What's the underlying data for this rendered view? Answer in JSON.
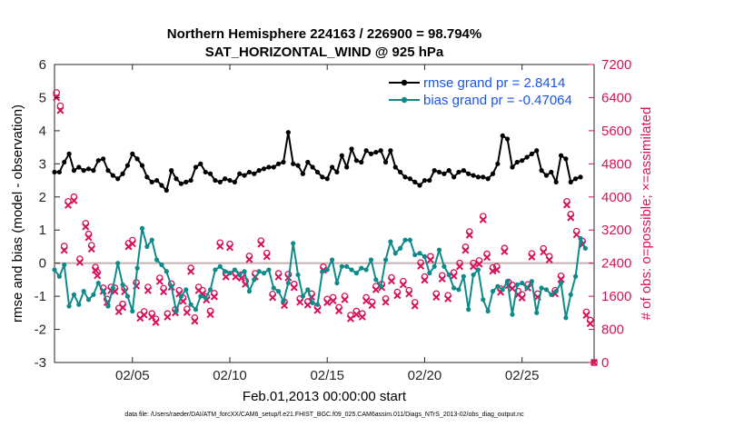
{
  "chart_data": {
    "type": "line",
    "title": "Northern Hemisphere 224163 / 226900 = 98.794%",
    "subtitle": "SAT_HORIZONTAL_WIND @ 925 hPa",
    "xlabel": "Feb.01,2013 00:00:00 start",
    "ylabel_left": "rmse and bias (model - observation)",
    "ylabel_right": "# of obs: o=possible; ×=assimilated",
    "footer": "data file: /Users/raeder/DAI/ATM_forcXX/CAM6_setup/f.e21.FHIST_BGC.f09_025.CAM6assim.011/Diags_NTrS_2013-02/obs_diag_output.nc",
    "x_range_days": [
      1,
      28.7
    ],
    "ylim_left": [
      -3,
      6
    ],
    "ylim_right": [
      0,
      7200
    ],
    "x_ticks": [
      {
        "day": 5,
        "label": "02/05"
      },
      {
        "day": 10,
        "label": "02/10"
      },
      {
        "day": 15,
        "label": "02/15"
      },
      {
        "day": 20,
        "label": "02/20"
      },
      {
        "day": 25,
        "label": "02/25"
      }
    ],
    "y_ticks_left": [
      "-3",
      "-2",
      "-1",
      "0",
      "1",
      "2",
      "3",
      "4",
      "5",
      "6"
    ],
    "y_ticks_right": [
      "0",
      "800",
      "1600",
      "2400",
      "3200",
      "4000",
      "4800",
      "5600",
      "6400",
      "7200"
    ],
    "x_start_day": 1.0,
    "x_step_day": 0.25,
    "colors": {
      "rmse": "#000000",
      "bias": "#0f8a8a",
      "obs": "#d6135a",
      "zero": "#c8b0b0",
      "legend_text": "#1a56e6"
    },
    "series": [
      {
        "name": "rmse grand pr = 2.8414",
        "axis": "left",
        "values": [
          2.75,
          2.75,
          3.05,
          3.3,
          2.8,
          2.9,
          2.8,
          2.85,
          2.8,
          3.1,
          3.15,
          2.8,
          2.65,
          2.55,
          2.7,
          2.95,
          3.3,
          3.15,
          2.95,
          2.6,
          2.45,
          2.5,
          2.35,
          2.2,
          2.8,
          2.55,
          2.4,
          2.45,
          2.5,
          2.9,
          3.0,
          2.75,
          2.7,
          2.5,
          2.45,
          2.55,
          2.5,
          2.45,
          2.7,
          2.65,
          2.75,
          2.7,
          2.8,
          2.85,
          2.9,
          2.9,
          3.0,
          3.05,
          3.95,
          3.0,
          2.95,
          2.7,
          3.05,
          2.9,
          2.75,
          2.6,
          2.55,
          2.9,
          2.75,
          3.25,
          2.9,
          3.45,
          3.1,
          3.05,
          3.4,
          3.3,
          3.35,
          3.4,
          3.05,
          3.4,
          2.9,
          2.75,
          2.6,
          2.55,
          2.45,
          2.35,
          2.5,
          2.5,
          2.8,
          2.75,
          2.7,
          2.8,
          2.6,
          2.75,
          2.8,
          2.7,
          2.65,
          2.6,
          2.6,
          2.55,
          2.7,
          3.0,
          3.85,
          3.75,
          2.9,
          3.05,
          3.1,
          3.2,
          3.3,
          3.4,
          2.8,
          2.65,
          2.75,
          2.45,
          3.25,
          3.15,
          2.45,
          2.55,
          2.6
        ],
        "points": [],
        "marker": "dot"
      },
      {
        "name": "bias grand pr = -0.47064",
        "axis": "left",
        "values": [
          -0.2,
          -0.4,
          -0.05,
          -1.3,
          -0.95,
          -1.25,
          -0.85,
          -1.1,
          -0.95,
          -0.6,
          -0.85,
          -1.3,
          -0.75,
          0.0,
          -0.65,
          -1.0,
          -1.45,
          -0.15,
          1.05,
          0.5,
          0.7,
          0.1,
          -0.05,
          -0.25,
          -0.7,
          -1.45,
          -1.0,
          -0.8,
          -1.25,
          -1.4,
          -1.0,
          -1.05,
          -0.8,
          -0.2,
          -0.1,
          -0.25,
          -0.3,
          -0.2,
          -0.35,
          -0.25,
          -0.85,
          -0.5,
          -0.25,
          -0.3,
          -0.2,
          -0.75,
          -0.85,
          -1.15,
          -0.6,
          0.6,
          -0.35,
          -1.0,
          -0.8,
          -1.2,
          -1.25,
          -0.25,
          -0.2,
          0.1,
          -0.6,
          -0.1,
          -0.1,
          -0.2,
          -0.3,
          -0.15,
          -0.2,
          0.1,
          -0.5,
          -0.7,
          0.1,
          0.65,
          0.3,
          0.45,
          0.7,
          0.7,
          0.25,
          0.3,
          0.2,
          -0.3,
          -0.1,
          0.4,
          -0.1,
          -0.35,
          -0.75,
          -0.8,
          -0.4,
          -1.4,
          -0.35,
          -0.2,
          -1.1,
          -1.45,
          -0.85,
          -0.7,
          -0.8,
          -0.55,
          -1.55,
          -0.65,
          -0.6,
          -0.75,
          -0.55,
          -1.5,
          -0.75,
          -0.8,
          -0.95,
          -0.85,
          -0.6,
          -1.65,
          -0.95,
          -0.4,
          0.75,
          0.45
        ],
        "points": [],
        "marker": "dot"
      },
      {
        "name": "possible observations",
        "axis": "right",
        "marker": "circle",
        "values": [],
        "points": [
          [
            1.1,
            6520
          ],
          [
            1.3,
            6200
          ],
          [
            1.5,
            2810
          ],
          [
            1.7,
            3890
          ],
          [
            2.0,
            4000
          ],
          [
            2.3,
            2500
          ],
          [
            2.6,
            3360
          ],
          [
            2.75,
            3100
          ],
          [
            2.9,
            2830
          ],
          [
            3.1,
            2300
          ],
          [
            3.2,
            2180
          ],
          [
            3.5,
            1800
          ],
          [
            3.7,
            1530
          ],
          [
            3.9,
            1820
          ],
          [
            4.1,
            1800
          ],
          [
            4.3,
            1310
          ],
          [
            4.5,
            1410
          ],
          [
            4.6,
            1790
          ],
          [
            4.8,
            2880
          ],
          [
            5.0,
            2950
          ],
          [
            5.2,
            1930
          ],
          [
            5.4,
            1150
          ],
          [
            5.6,
            1230
          ],
          [
            5.8,
            1820
          ],
          [
            6.0,
            1180
          ],
          [
            6.2,
            1050
          ],
          [
            6.4,
            2040
          ],
          [
            6.6,
            1790
          ],
          [
            6.8,
            1180
          ],
          [
            7.0,
            1900
          ],
          [
            7.2,
            1280
          ],
          [
            7.4,
            1740
          ],
          [
            7.6,
            1560
          ],
          [
            7.8,
            1290
          ],
          [
            8.0,
            2280
          ],
          [
            8.2,
            1080
          ],
          [
            8.4,
            1820
          ],
          [
            8.6,
            1740
          ],
          [
            8.8,
            1590
          ],
          [
            9.0,
            1240
          ],
          [
            9.2,
            1670
          ],
          [
            9.5,
            2890
          ],
          [
            9.8,
            2150
          ],
          [
            10.0,
            2860
          ],
          [
            10.3,
            2150
          ],
          [
            10.6,
            2120
          ],
          [
            10.8,
            1970
          ],
          [
            11.0,
            2570
          ],
          [
            11.3,
            2150
          ],
          [
            11.6,
            2940
          ],
          [
            11.9,
            2640
          ],
          [
            12.2,
            1650
          ],
          [
            12.5,
            2150
          ],
          [
            12.8,
            1460
          ],
          [
            13.0,
            2130
          ],
          [
            13.3,
            1890
          ],
          [
            13.6,
            1540
          ],
          [
            14.0,
            1470
          ],
          [
            14.2,
            1660
          ],
          [
            14.5,
            1340
          ],
          [
            14.8,
            2310
          ],
          [
            15.0,
            1530
          ],
          [
            15.3,
            1570
          ],
          [
            15.6,
            1330
          ],
          [
            15.9,
            1600
          ],
          [
            16.2,
            1140
          ],
          [
            16.5,
            1240
          ],
          [
            16.8,
            1180
          ],
          [
            17.0,
            1570
          ],
          [
            17.3,
            1460
          ],
          [
            17.5,
            1840
          ],
          [
            17.8,
            1890
          ],
          [
            18.0,
            1540
          ],
          [
            18.3,
            2050
          ],
          [
            18.6,
            1700
          ],
          [
            18.9,
            1960
          ],
          [
            19.2,
            1740
          ],
          [
            19.5,
            1450
          ],
          [
            19.8,
            2410
          ],
          [
            20.0,
            2070
          ],
          [
            20.3,
            2560
          ],
          [
            20.6,
            1660
          ],
          [
            20.9,
            2100
          ],
          [
            21.2,
            1620
          ],
          [
            21.5,
            2170
          ],
          [
            21.8,
            2400
          ],
          [
            22.1,
            2790
          ],
          [
            22.3,
            3160
          ],
          [
            22.5,
            2400
          ],
          [
            22.8,
            2460
          ],
          [
            23.0,
            3530
          ],
          [
            23.2,
            2620
          ],
          [
            23.5,
            2290
          ],
          [
            23.7,
            2320
          ],
          [
            23.9,
            1780
          ],
          [
            24.1,
            2760
          ],
          [
            24.3,
            1940
          ],
          [
            24.5,
            1870
          ],
          [
            24.8,
            1720
          ],
          [
            25.0,
            1640
          ],
          [
            25.3,
            1880
          ],
          [
            25.5,
            2630
          ],
          [
            25.8,
            1660
          ],
          [
            26.1,
            2750
          ],
          [
            26.4,
            2560
          ],
          [
            26.7,
            1740
          ],
          [
            27.0,
            2090
          ],
          [
            27.3,
            3890
          ],
          [
            27.5,
            3580
          ],
          [
            27.8,
            3170
          ],
          [
            28.1,
            2930
          ],
          [
            28.3,
            1220
          ],
          [
            28.5,
            1020
          ],
          [
            28.7,
            0
          ]
        ]
      },
      {
        "name": "assimilated observations",
        "axis": "right",
        "marker": "x",
        "values": [],
        "points": [
          [
            1.1,
            6400
          ],
          [
            1.3,
            6090
          ],
          [
            1.5,
            2710
          ],
          [
            1.7,
            3800
          ],
          [
            2.0,
            3910
          ],
          [
            2.3,
            2420
          ],
          [
            2.6,
            3280
          ],
          [
            2.75,
            3020
          ],
          [
            2.9,
            2740
          ],
          [
            3.1,
            2230
          ],
          [
            3.2,
            2100
          ],
          [
            3.5,
            1720
          ],
          [
            3.7,
            1450
          ],
          [
            3.9,
            1740
          ],
          [
            4.1,
            1720
          ],
          [
            4.3,
            1230
          ],
          [
            4.5,
            1330
          ],
          [
            4.6,
            1710
          ],
          [
            4.8,
            2800
          ],
          [
            5.0,
            2870
          ],
          [
            5.2,
            1850
          ],
          [
            5.4,
            1070
          ],
          [
            5.6,
            1150
          ],
          [
            5.8,
            1740
          ],
          [
            6.0,
            1100
          ],
          [
            6.2,
            970
          ],
          [
            6.4,
            1960
          ],
          [
            6.6,
            1710
          ],
          [
            6.8,
            1100
          ],
          [
            7.0,
            1820
          ],
          [
            7.2,
            1200
          ],
          [
            7.4,
            1660
          ],
          [
            7.6,
            1480
          ],
          [
            7.8,
            1210
          ],
          [
            8.0,
            2200
          ],
          [
            8.2,
            1000
          ],
          [
            8.4,
            1740
          ],
          [
            8.6,
            1660
          ],
          [
            8.8,
            1510
          ],
          [
            9.0,
            1160
          ],
          [
            9.2,
            1590
          ],
          [
            9.5,
            2810
          ],
          [
            9.8,
            2070
          ],
          [
            10.0,
            2780
          ],
          [
            10.3,
            2070
          ],
          [
            10.6,
            2040
          ],
          [
            10.8,
            1890
          ],
          [
            11.0,
            2490
          ],
          [
            11.3,
            2070
          ],
          [
            11.6,
            2860
          ],
          [
            11.9,
            2560
          ],
          [
            12.2,
            1570
          ],
          [
            12.5,
            2070
          ],
          [
            12.8,
            1380
          ],
          [
            13.0,
            2050
          ],
          [
            13.3,
            1810
          ],
          [
            13.6,
            1460
          ],
          [
            14.0,
            1390
          ],
          [
            14.2,
            1580
          ],
          [
            14.5,
            1260
          ],
          [
            14.8,
            2230
          ],
          [
            15.0,
            1450
          ],
          [
            15.3,
            1490
          ],
          [
            15.6,
            1250
          ],
          [
            15.9,
            1520
          ],
          [
            16.2,
            1060
          ],
          [
            16.5,
            1160
          ],
          [
            16.8,
            1100
          ],
          [
            17.0,
            1490
          ],
          [
            17.3,
            1380
          ],
          [
            17.5,
            1760
          ],
          [
            17.8,
            1810
          ],
          [
            18.0,
            1460
          ],
          [
            18.3,
            1970
          ],
          [
            18.6,
            1620
          ],
          [
            18.9,
            1880
          ],
          [
            19.2,
            1660
          ],
          [
            19.5,
            1370
          ],
          [
            19.8,
            2330
          ],
          [
            20.0,
            1990
          ],
          [
            20.3,
            2480
          ],
          [
            20.6,
            1580
          ],
          [
            20.9,
            2020
          ],
          [
            21.2,
            1540
          ],
          [
            21.5,
            2090
          ],
          [
            21.8,
            2320
          ],
          [
            22.1,
            2710
          ],
          [
            22.3,
            3080
          ],
          [
            22.5,
            2320
          ],
          [
            22.8,
            2380
          ],
          [
            23.0,
            3450
          ],
          [
            23.2,
            2540
          ],
          [
            23.5,
            2210
          ],
          [
            23.7,
            2240
          ],
          [
            23.9,
            1700
          ],
          [
            24.1,
            2680
          ],
          [
            24.3,
            1860
          ],
          [
            24.5,
            1790
          ],
          [
            24.8,
            1640
          ],
          [
            25.0,
            1560
          ],
          [
            25.3,
            1800
          ],
          [
            25.5,
            2550
          ],
          [
            25.8,
            1580
          ],
          [
            26.1,
            2670
          ],
          [
            26.4,
            2480
          ],
          [
            26.7,
            1660
          ],
          [
            27.0,
            2010
          ],
          [
            27.3,
            3810
          ],
          [
            27.5,
            3500
          ],
          [
            27.8,
            3090
          ],
          [
            28.1,
            2850
          ],
          [
            28.3,
            1140
          ],
          [
            28.5,
            940
          ],
          [
            28.7,
            0
          ]
        ]
      }
    ]
  }
}
